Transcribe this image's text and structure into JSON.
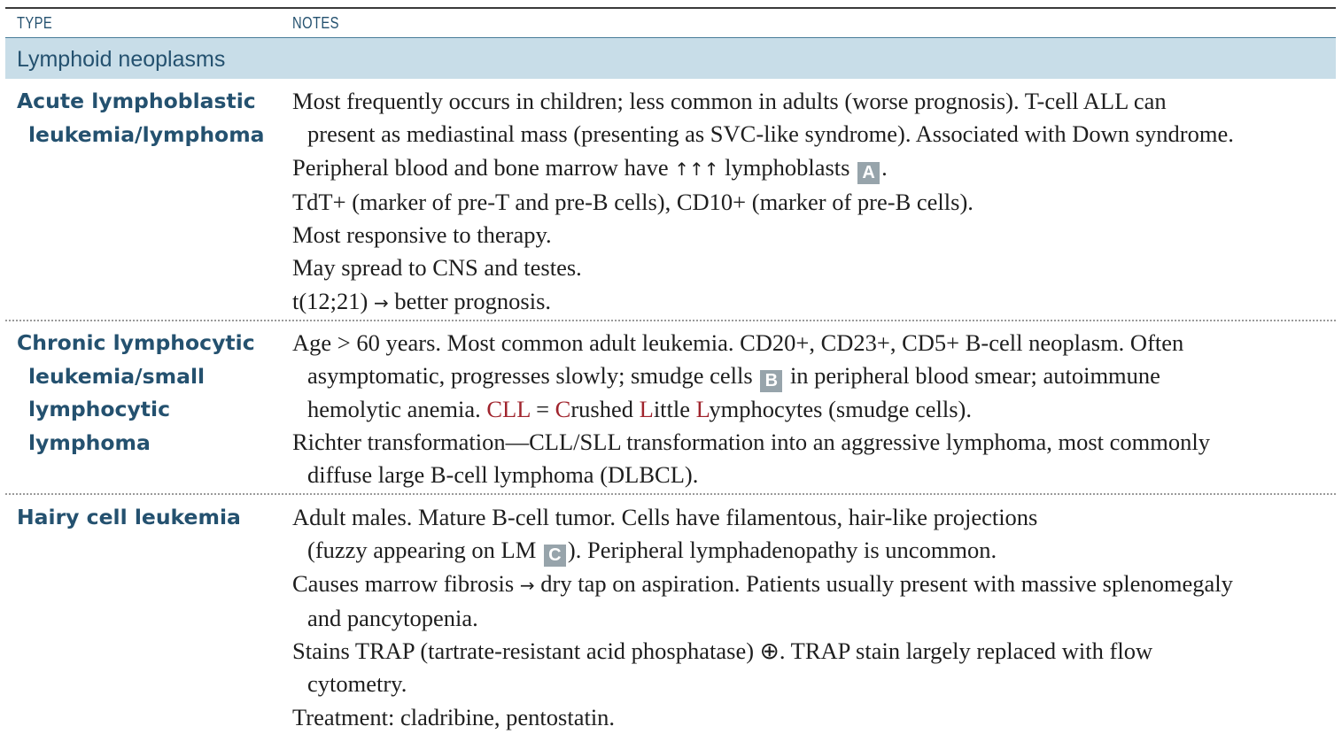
{
  "header": {
    "col_type": "TYPE",
    "col_notes": "NOTES"
  },
  "section": {
    "title": "Lymphoid neoplasms"
  },
  "rows": [
    {
      "type_lines": [
        "Acute lymphoblastic",
        "leukemia/lymphoma"
      ],
      "notes": [
        [
          "Most frequently occurs in children; less common in adults (worse prognosis). T-cell ALL can",
          "present as mediastinal mass (presenting as SVC-like syndrome). Associated with Down syndrome."
        ],
        {
          "before": "Peripheral blood and bone marrow have ",
          "arrows": "↑↑↑",
          "after": " lymphoblasts ",
          "badge": "A",
          "end": "."
        },
        [
          "TdT+ (marker of pre-T and pre-B cells), CD10+ (marker of pre-B cells)."
        ],
        [
          "Most responsive to therapy."
        ],
        [
          "May spread to CNS and testes."
        ],
        {
          "before": "t(12;21) ",
          "arrow": "→",
          "after": " better prognosis."
        }
      ]
    },
    {
      "type_lines": [
        "Chronic lymphocytic",
        "leukemia/small",
        "lymphocytic",
        "lymphoma"
      ],
      "notes": [
        {
          "line1": "Age > 60 years. Most common adult leukemia. CD20+, CD23+, CD5+ B-cell neoplasm. Often",
          "line2_before": "asymptomatic, progresses slowly; smudge cells ",
          "badge": "B",
          "line2_after": " in peripheral blood smear; autoimmune",
          "line3_before": "hemolytic anemia. ",
          "mnemonic": "CLL",
          "eq": " = ",
          "m1": "C",
          "w1": "rushed ",
          "m2": "L",
          "w2": "ittle ",
          "m3": "L",
          "w3": "ymphocytes (smudge cells)."
        },
        [
          "Richter transformation—CLL/SLL transformation into an aggressive lymphoma, most commonly",
          "diffuse large B-cell lymphoma (DLBCL)."
        ]
      ]
    },
    {
      "type_lines": [
        "Hairy cell leukemia"
      ],
      "notes": [
        {
          "line1": "Adult males. Mature B-cell tumor. Cells have filamentous, hair-like projections",
          "line2_before": "(fuzzy appearing on LM ",
          "badge": "C",
          "line2_after": "). Peripheral lymphadenopathy is uncommon."
        },
        {
          "before": "Causes marrow fibrosis ",
          "arrow": "→",
          "after": " dry tap on aspiration. Patients usually present with massive splenomegaly",
          "cont": "and pancytopenia."
        },
        [
          "Stains TRAP (tartrate-resistant acid phosphatase) ⊕. TRAP stain largely replaced with flow",
          "cytometry."
        ],
        [
          "Treatment: cladribine, pentostatin."
        ]
      ]
    }
  ],
  "colors": {
    "heading": "#24516f",
    "section_bg": "#c8dde8",
    "mnemonic": "#a0242d",
    "badge": "#97a4ab"
  }
}
